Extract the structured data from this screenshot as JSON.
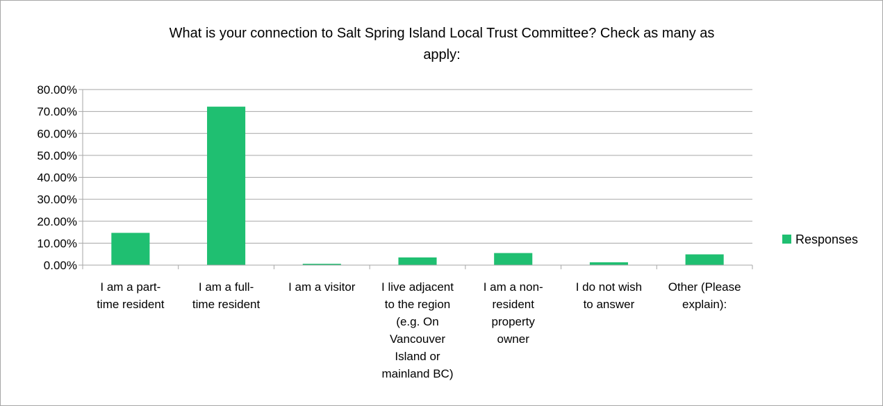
{
  "chart_data": {
    "type": "bar",
    "title_lines": [
      "What is your connection to Salt Spring Island Local Trust Committee? Check as many as",
      "apply:"
    ],
    "categories": [
      [
        "I am a part-",
        "time resident"
      ],
      [
        "I am a full-",
        "time resident"
      ],
      [
        "I am a visitor"
      ],
      [
        "I live adjacent",
        "to the region",
        "(e.g. On",
        "Vancouver",
        "Island or",
        "mainland BC)"
      ],
      [
        "I am a non-",
        "resident",
        "property",
        "owner"
      ],
      [
        "I do not wish",
        "to answer"
      ],
      [
        "Other (Please",
        "explain):"
      ]
    ],
    "series": [
      {
        "name": "Responses",
        "values": [
          14.7,
          72.2,
          0.6,
          3.5,
          5.5,
          1.3,
          4.9
        ]
      }
    ],
    "ylim": [
      0,
      80
    ],
    "yticks": [
      0,
      10,
      20,
      30,
      40,
      50,
      60,
      70,
      80
    ],
    "ytick_labels": [
      "0.00%",
      "10.00%",
      "20.00%",
      "30.00%",
      "40.00%",
      "50.00%",
      "60.00%",
      "70.00%",
      "80.00%"
    ],
    "grid": true,
    "legend_position": "right",
    "bar_color": "#1fbf71",
    "grid_color": "#a6a6a6"
  }
}
